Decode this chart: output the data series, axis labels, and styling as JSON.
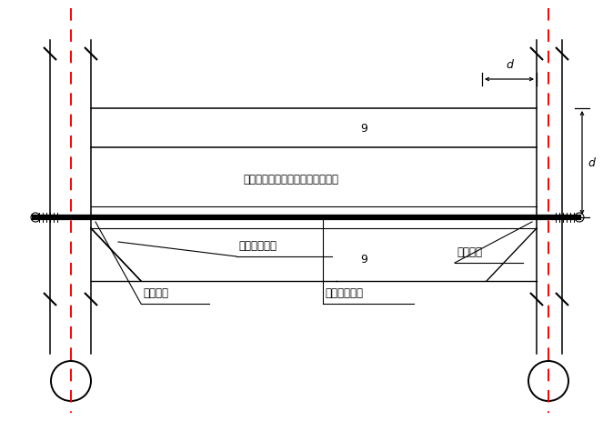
{
  "bg_color": "#ffffff",
  "line_color": "#000000",
  "red_line_color": "#ff0000",
  "note_text": "（用于柱一侧无梁且无板的情况）",
  "label_liang_di_xin_zeng": "梁底新增截面",
  "label_zhi_jin_left": "植筋锚固",
  "label_zhi_jin_right": "植筋锚固",
  "label_xin_zeng_zong_jin": "新增梁底纵筋",
  "dim_d_top": "d",
  "dim_d_right": "d",
  "dim_9_top": "9",
  "dim_9_bot": "9",
  "fig_width": 6.74,
  "fig_height": 4.64,
  "dpi": 100
}
